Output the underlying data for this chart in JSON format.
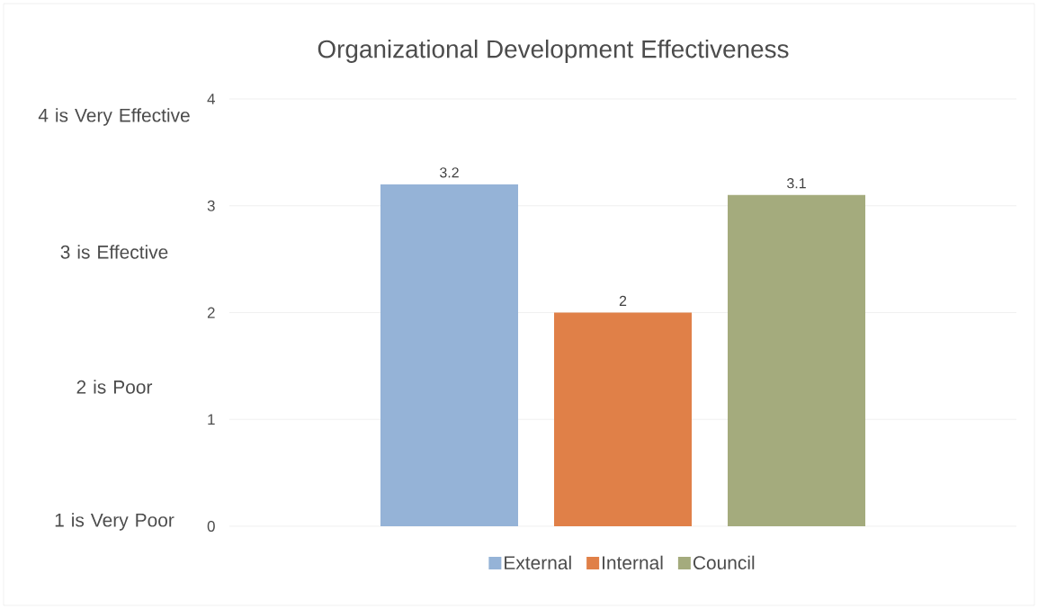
{
  "chart_data": {
    "type": "bar",
    "title": "Organizational Development Effectiveness",
    "categories": [
      null
    ],
    "series": [
      {
        "name": "External",
        "color": "#95b3d7",
        "values": [
          3.2
        ]
      },
      {
        "name": "Internal",
        "color": "#e08048",
        "values": [
          2
        ]
      },
      {
        "name": "Council",
        "color": "#a4ab7d",
        "values": [
          3.1
        ]
      }
    ],
    "ylim": [
      0,
      4
    ],
    "yticks": [
      0,
      1,
      2,
      3,
      4
    ],
    "grid": "y",
    "legend": "bottom",
    "data_labels": true,
    "annotations": [
      "4 is Very Effective",
      "3 is Effective",
      "2 is Poor",
      "1 is Very Poor"
    ]
  }
}
